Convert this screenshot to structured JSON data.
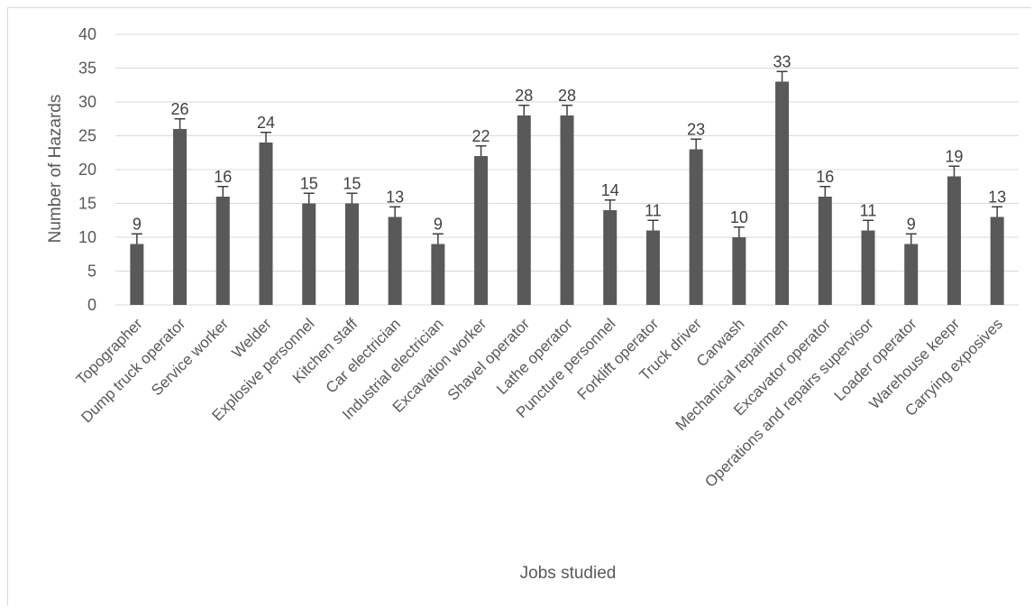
{
  "chart_data": {
    "type": "bar",
    "xlabel": "Jobs studied",
    "ylabel": "Number of Hazards",
    "ylim": [
      0,
      40
    ],
    "yticks": [
      0,
      5,
      10,
      15,
      20,
      25,
      30,
      35,
      40
    ],
    "grid": true,
    "error_bars": true,
    "color": "#595959",
    "categories": [
      "Topographer",
      "Dump truck operator",
      "Service worker",
      "Welder",
      "Explosive personnel",
      "Kitchen staff",
      "Car electrician",
      "Industrial electrician",
      "Excavation worker",
      "Shavel operator",
      "Lathe operator",
      "Puncture personnel",
      "Forklift operator",
      "Truck driver",
      "Carwash",
      "Mechanical repairmen",
      "Excavator operator",
      "Operations and repairs supervisor",
      "Loader operator",
      "Warehouse keepr",
      "Carrying exposives"
    ],
    "values": [
      9,
      26,
      16,
      24,
      15,
      15,
      13,
      9,
      22,
      28,
      28,
      14,
      11,
      23,
      10,
      33,
      16,
      11,
      9,
      19,
      13
    ]
  }
}
